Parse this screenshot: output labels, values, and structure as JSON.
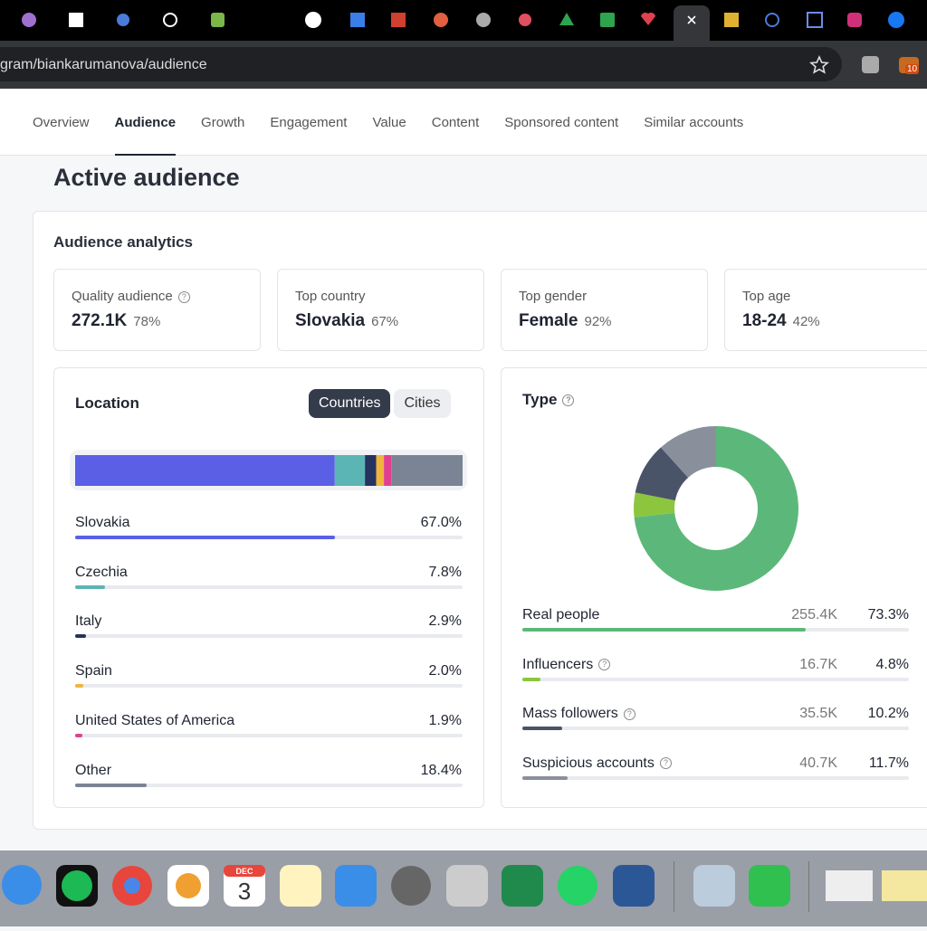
{
  "browser": {
    "url": "gram/biankarumanova/audience",
    "extension_badge": "10"
  },
  "nav": {
    "tabs": [
      "Overview",
      "Audience",
      "Growth",
      "Engagement",
      "Value",
      "Content",
      "Sponsored content",
      "Similar accounts"
    ],
    "active": "Audience"
  },
  "page_title": "Active audience",
  "section_title": "Audience analytics",
  "stats": [
    {
      "label": "Quality audience",
      "value": "272.1K",
      "share": "78%",
      "help": true
    },
    {
      "label": "Top country",
      "value": "Slovakia",
      "share": "67%"
    },
    {
      "label": "Top gender",
      "value": "Female",
      "share": "92%"
    },
    {
      "label": "Top age",
      "value": "18-24",
      "share": "42%"
    }
  ],
  "location": {
    "title": "Location",
    "toggle": [
      "Countries",
      "Cities"
    ],
    "toggle_active": "Countries",
    "rows": [
      {
        "name": "Slovakia",
        "value": 67.0,
        "value_label": "67.0%",
        "color": "#5b5fe6"
      },
      {
        "name": "Czechia",
        "value": 7.8,
        "value_label": "7.8%",
        "color": "#5ab5b4"
      },
      {
        "name": "Italy",
        "value": 2.9,
        "value_label": "2.9%",
        "color": "#27325e"
      },
      {
        "name": "Spain",
        "value": 2.0,
        "value_label": "2.0%",
        "color": "#f0b43c"
      },
      {
        "name": "United States of America",
        "value": 1.9,
        "value_label": "1.9%",
        "color": "#e0408f"
      },
      {
        "name": "Other",
        "value": 18.4,
        "value_label": "18.4%",
        "color": "#7b8494"
      }
    ]
  },
  "type_card": {
    "title": "Type",
    "rows": [
      {
        "name": "Real people",
        "count": 255400,
        "count_label": "255.4K",
        "value": 73.3,
        "value_label": "73.3%",
        "color": "#5cb87a"
      },
      {
        "name": "Influencers",
        "count": 16700,
        "count_label": "16.7K",
        "value": 4.8,
        "value_label": "4.8%",
        "color": "#8cc63f",
        "help": true
      },
      {
        "name": "Mass followers",
        "count": 35500,
        "count_label": "35.5K",
        "value": 10.2,
        "value_label": "10.2%",
        "color": "#4a5468",
        "help": true
      },
      {
        "name": "Suspicious accounts",
        "count": 40700,
        "count_label": "40.7K",
        "value": 11.7,
        "value_label": "11.7%",
        "color": "#8a8f9c",
        "help": true
      }
    ]
  },
  "dock": {
    "calendar_month": "DEC",
    "calendar_day": "3"
  }
}
